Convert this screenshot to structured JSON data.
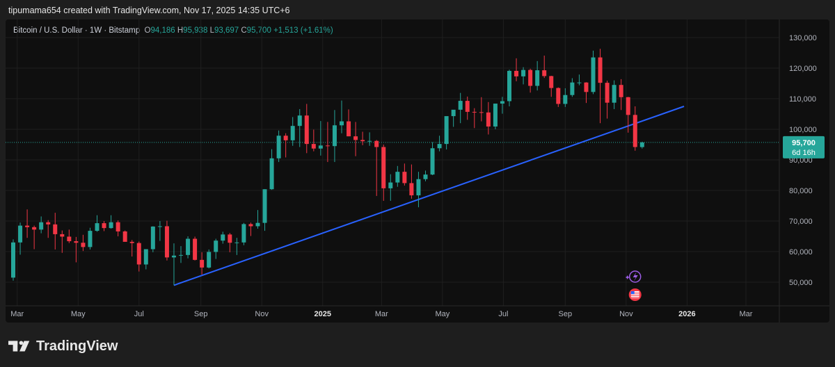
{
  "header": {
    "text": "tipumama654 created with TradingView.com, Nov 17, 2025 14:35 UTC+6"
  },
  "legend": {
    "symbol": "Bitcoin / U.S. Dollar · 1W · Bitstamp",
    "o_label": "O",
    "o_value": "94,186",
    "h_label": "H",
    "h_value": "95,938",
    "l_label": "L",
    "l_value": "93,697",
    "c_label": "C",
    "c_value": "95,700",
    "change": "+1,513 (+1.61%)"
  },
  "price_tag": {
    "price": "95,700",
    "countdown": "6d 16h"
  },
  "footer": {
    "brand": "TradingView"
  },
  "colors": {
    "up": "#26a69a",
    "down": "#f23645",
    "trendline": "#2962ff",
    "background": "#0f0f0f",
    "grid": "#1f1f1f"
  },
  "chart_data": {
    "type": "candlestick",
    "interval": "1W",
    "ylim": [
      46000,
      133000
    ],
    "y_ticks": [
      50000,
      60000,
      70000,
      80000,
      90000,
      100000,
      110000,
      120000,
      130000
    ],
    "y_tick_labels": [
      "50,000",
      "60,000",
      "70,000",
      "80,000",
      "90,000",
      "100,000",
      "110,000",
      "120,000",
      "130,000"
    ],
    "x_labels": [
      {
        "label": "Mar",
        "date": "2024-03-01",
        "bold": false
      },
      {
        "label": "May",
        "date": "2024-05-01",
        "bold": false
      },
      {
        "label": "Jul",
        "date": "2024-07-01",
        "bold": false
      },
      {
        "label": "Sep",
        "date": "2024-09-01",
        "bold": false
      },
      {
        "label": "Nov",
        "date": "2024-11-01",
        "bold": false
      },
      {
        "label": "2025",
        "date": "2025-01-01",
        "bold": true
      },
      {
        "label": "Mar",
        "date": "2025-03-01",
        "bold": false
      },
      {
        "label": "May",
        "date": "2025-05-01",
        "bold": false
      },
      {
        "label": "Jul",
        "date": "2025-07-01",
        "bold": false
      },
      {
        "label": "Sep",
        "date": "2025-09-01",
        "bold": false
      },
      {
        "label": "Nov",
        "date": "2025-11-01",
        "bold": false
      },
      {
        "label": "2026",
        "date": "2026-01-01",
        "bold": true
      },
      {
        "label": "Mar",
        "date": "2026-03-01",
        "bold": false
      }
    ],
    "last_price": 95700,
    "candles": [
      {
        "week": "2024-02-26",
        "o": 51500,
        "h": 64000,
        "l": 50500,
        "c": 63000
      },
      {
        "week": "2024-03-04",
        "o": 63000,
        "h": 69500,
        "l": 59000,
        "c": 68500
      },
      {
        "week": "2024-03-11",
        "o": 68500,
        "h": 73800,
        "l": 64500,
        "c": 68000
      },
      {
        "week": "2024-03-18",
        "o": 68000,
        "h": 68500,
        "l": 60800,
        "c": 67200
      },
      {
        "week": "2024-03-25",
        "o": 67200,
        "h": 71500,
        "l": 66000,
        "c": 69600
      },
      {
        "week": "2024-04-01",
        "o": 69600,
        "h": 70300,
        "l": 64500,
        "c": 68900
      },
      {
        "week": "2024-04-08",
        "o": 68900,
        "h": 72700,
        "l": 60700,
        "c": 65700
      },
      {
        "week": "2024-04-15",
        "o": 65700,
        "h": 66900,
        "l": 59600,
        "c": 64900
      },
      {
        "week": "2024-04-22",
        "o": 64900,
        "h": 67200,
        "l": 62800,
        "c": 63400
      },
      {
        "week": "2024-04-29",
        "o": 63400,
        "h": 64800,
        "l": 56500,
        "c": 62900
      },
      {
        "week": "2024-05-06",
        "o": 62900,
        "h": 65500,
        "l": 60200,
        "c": 61500
      },
      {
        "week": "2024-05-13",
        "o": 61500,
        "h": 67800,
        "l": 60700,
        "c": 66800
      },
      {
        "week": "2024-05-20",
        "o": 66800,
        "h": 71900,
        "l": 66500,
        "c": 69300
      },
      {
        "week": "2024-05-27",
        "o": 69300,
        "h": 70000,
        "l": 66700,
        "c": 67700
      },
      {
        "week": "2024-06-03",
        "o": 67700,
        "h": 71900,
        "l": 67500,
        "c": 69600
      },
      {
        "week": "2024-06-10",
        "o": 69600,
        "h": 70200,
        "l": 65000,
        "c": 66600
      },
      {
        "week": "2024-06-17",
        "o": 66600,
        "h": 66900,
        "l": 63400,
        "c": 63200
      },
      {
        "week": "2024-06-24",
        "o": 63200,
        "h": 63800,
        "l": 58400,
        "c": 62800
      },
      {
        "week": "2024-07-01",
        "o": 62800,
        "h": 63300,
        "l": 53500,
        "c": 55800
      },
      {
        "week": "2024-07-08",
        "o": 55800,
        "h": 60500,
        "l": 54200,
        "c": 60800
      },
      {
        "week": "2024-07-15",
        "o": 60800,
        "h": 68300,
        "l": 59800,
        "c": 68200
      },
      {
        "week": "2024-07-22",
        "o": 68200,
        "h": 70000,
        "l": 63500,
        "c": 68300
      },
      {
        "week": "2024-07-29",
        "o": 68300,
        "h": 70100,
        "l": 57100,
        "c": 58100
      },
      {
        "week": "2024-08-05",
        "o": 58100,
        "h": 62700,
        "l": 49000,
        "c": 58700
      },
      {
        "week": "2024-08-12",
        "o": 58700,
        "h": 61800,
        "l": 56300,
        "c": 58900
      },
      {
        "week": "2024-08-19",
        "o": 58900,
        "h": 65000,
        "l": 57800,
        "c": 64200
      },
      {
        "week": "2024-08-26",
        "o": 64200,
        "h": 64900,
        "l": 57100,
        "c": 57300
      },
      {
        "week": "2024-09-02",
        "o": 57300,
        "h": 59800,
        "l": 52500,
        "c": 54800
      },
      {
        "week": "2024-09-09",
        "o": 54800,
        "h": 60700,
        "l": 54500,
        "c": 59900
      },
      {
        "week": "2024-09-16",
        "o": 59900,
        "h": 64200,
        "l": 57600,
        "c": 63600
      },
      {
        "week": "2024-09-23",
        "o": 63600,
        "h": 66500,
        "l": 62600,
        "c": 65600
      },
      {
        "week": "2024-09-30",
        "o": 65600,
        "h": 66100,
        "l": 59800,
        "c": 62900
      },
      {
        "week": "2024-10-07",
        "o": 62900,
        "h": 64500,
        "l": 58900,
        "c": 63000
      },
      {
        "week": "2024-10-14",
        "o": 63000,
        "h": 69400,
        "l": 62100,
        "c": 69000
      },
      {
        "week": "2024-10-21",
        "o": 69000,
        "h": 69500,
        "l": 65100,
        "c": 68300
      },
      {
        "week": "2024-10-28",
        "o": 68300,
        "h": 73600,
        "l": 67500,
        "c": 69400
      },
      {
        "week": "2024-11-04",
        "o": 69400,
        "h": 80400,
        "l": 66800,
        "c": 80400
      },
      {
        "week": "2024-11-11",
        "o": 80400,
        "h": 93500,
        "l": 80200,
        "c": 90500
      },
      {
        "week": "2024-11-18",
        "o": 90500,
        "h": 99600,
        "l": 89300,
        "c": 97900
      },
      {
        "week": "2024-11-25",
        "o": 97900,
        "h": 98700,
        "l": 90800,
        "c": 96400
      },
      {
        "week": "2024-12-02",
        "o": 96400,
        "h": 104000,
        "l": 94600,
        "c": 101100
      },
      {
        "week": "2024-12-09",
        "o": 101100,
        "h": 106600,
        "l": 94200,
        "c": 104500
      },
      {
        "week": "2024-12-16",
        "o": 104500,
        "h": 108300,
        "l": 92200,
        "c": 95200
      },
      {
        "week": "2024-12-23",
        "o": 95200,
        "h": 99900,
        "l": 92800,
        "c": 93700
      },
      {
        "week": "2024-12-30",
        "o": 93700,
        "h": 102700,
        "l": 91400,
        "c": 94700
      },
      {
        "week": "2025-01-06",
        "o": 94700,
        "h": 102400,
        "l": 89300,
        "c": 94500
      },
      {
        "week": "2025-01-13",
        "o": 94500,
        "h": 106300,
        "l": 89300,
        "c": 101300
      },
      {
        "week": "2025-01-20",
        "o": 101300,
        "h": 109400,
        "l": 98700,
        "c": 102600
      },
      {
        "week": "2025-01-27",
        "o": 102600,
        "h": 106500,
        "l": 97700,
        "c": 97700
      },
      {
        "week": "2025-02-03",
        "o": 97700,
        "h": 102400,
        "l": 91200,
        "c": 96500
      },
      {
        "week": "2025-02-10",
        "o": 96500,
        "h": 99200,
        "l": 94800,
        "c": 96100
      },
      {
        "week": "2025-02-17",
        "o": 96100,
        "h": 99000,
        "l": 94600,
        "c": 96200
      },
      {
        "week": "2025-02-24",
        "o": 96200,
        "h": 96500,
        "l": 78200,
        "c": 94200
      },
      {
        "week": "2025-03-03",
        "o": 94200,
        "h": 95000,
        "l": 76600,
        "c": 80700
      },
      {
        "week": "2025-03-10",
        "o": 80700,
        "h": 85300,
        "l": 76600,
        "c": 82600
      },
      {
        "week": "2025-03-17",
        "o": 82600,
        "h": 88000,
        "l": 81200,
        "c": 86100
      },
      {
        "week": "2025-03-24",
        "o": 86100,
        "h": 88800,
        "l": 81600,
        "c": 82400
      },
      {
        "week": "2025-03-31",
        "o": 82400,
        "h": 88500,
        "l": 77300,
        "c": 78400
      },
      {
        "week": "2025-04-07",
        "o": 78400,
        "h": 86100,
        "l": 74500,
        "c": 83700
      },
      {
        "week": "2025-04-14",
        "o": 83700,
        "h": 86500,
        "l": 83000,
        "c": 85200
      },
      {
        "week": "2025-04-21",
        "o": 85200,
        "h": 95800,
        "l": 85000,
        "c": 93800
      },
      {
        "week": "2025-04-28",
        "o": 93800,
        "h": 97900,
        "l": 92800,
        "c": 95200
      },
      {
        "week": "2025-05-05",
        "o": 95200,
        "h": 104100,
        "l": 93400,
        "c": 104300
      },
      {
        "week": "2025-05-12",
        "o": 104300,
        "h": 105800,
        "l": 100800,
        "c": 106400
      },
      {
        "week": "2025-05-19",
        "o": 106400,
        "h": 111900,
        "l": 102000,
        "c": 109300
      },
      {
        "week": "2025-05-26",
        "o": 109300,
        "h": 110700,
        "l": 103100,
        "c": 105700
      },
      {
        "week": "2025-06-02",
        "o": 105700,
        "h": 106900,
        "l": 100400,
        "c": 105600
      },
      {
        "week": "2025-06-09",
        "o": 105600,
        "h": 110500,
        "l": 102600,
        "c": 105500
      },
      {
        "week": "2025-06-16",
        "o": 105500,
        "h": 108900,
        "l": 98300,
        "c": 100900
      },
      {
        "week": "2025-06-23",
        "o": 100900,
        "h": 108300,
        "l": 100000,
        "c": 108400
      },
      {
        "week": "2025-06-30",
        "o": 108400,
        "h": 110600,
        "l": 105100,
        "c": 109200
      },
      {
        "week": "2025-07-07",
        "o": 109200,
        "h": 119500,
        "l": 107500,
        "c": 119100
      },
      {
        "week": "2025-07-14",
        "o": 119100,
        "h": 123200,
        "l": 115700,
        "c": 117300
      },
      {
        "week": "2025-07-21",
        "o": 117300,
        "h": 120300,
        "l": 114700,
        "c": 119400
      },
      {
        "week": "2025-07-28",
        "o": 119400,
        "h": 119800,
        "l": 112000,
        "c": 114200
      },
      {
        "week": "2025-08-04",
        "o": 114200,
        "h": 122300,
        "l": 112700,
        "c": 119300
      },
      {
        "week": "2025-08-11",
        "o": 119300,
        "h": 124100,
        "l": 116800,
        "c": 117400
      },
      {
        "week": "2025-08-18",
        "o": 117400,
        "h": 117500,
        "l": 110600,
        "c": 113500
      },
      {
        "week": "2025-08-25",
        "o": 113500,
        "h": 113700,
        "l": 107300,
        "c": 108300
      },
      {
        "week": "2025-09-01",
        "o": 108300,
        "h": 113400,
        "l": 107300,
        "c": 111200
      },
      {
        "week": "2025-09-08",
        "o": 111200,
        "h": 116700,
        "l": 110600,
        "c": 115300
      },
      {
        "week": "2025-09-15",
        "o": 115300,
        "h": 117900,
        "l": 114400,
        "c": 115300
      },
      {
        "week": "2025-09-22",
        "o": 115300,
        "h": 115400,
        "l": 108600,
        "c": 112200
      },
      {
        "week": "2025-09-29",
        "o": 112200,
        "h": 125700,
        "l": 111500,
        "c": 123500
      },
      {
        "week": "2025-10-06",
        "o": 123500,
        "h": 126300,
        "l": 102000,
        "c": 115200
      },
      {
        "week": "2025-10-13",
        "o": 115200,
        "h": 115900,
        "l": 103500,
        "c": 108700
      },
      {
        "week": "2025-10-20",
        "o": 108700,
        "h": 116000,
        "l": 106600,
        "c": 114500
      },
      {
        "week": "2025-10-27",
        "o": 114500,
        "h": 116400,
        "l": 106300,
        "c": 110500
      },
      {
        "week": "2025-11-03",
        "o": 110500,
        "h": 110600,
        "l": 98900,
        "c": 104700
      },
      {
        "week": "2025-11-10",
        "o": 104700,
        "h": 107500,
        "l": 93000,
        "c": 94200
      },
      {
        "week": "2025-11-17",
        "o": 94186,
        "h": 95938,
        "l": 93697,
        "c": 95700
      }
    ],
    "trendline": {
      "start": {
        "week": "2024-08-05",
        "price": 49000
      },
      "end": {
        "week": "2025-12-29",
        "price": 107500
      }
    }
  }
}
